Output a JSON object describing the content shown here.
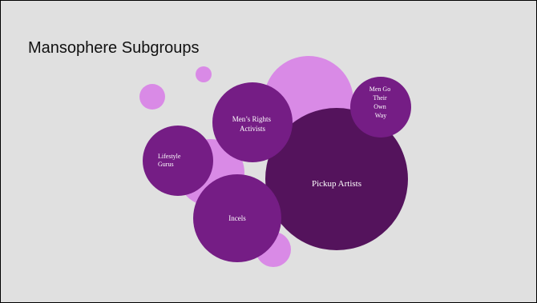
{
  "slide": {
    "title": "Mansophere Subgroups"
  },
  "colors": {
    "background": "#e0e0e0",
    "light_bubble": "#d98ae6",
    "medium_bubble": "#751d85",
    "dark_bubble": "#54135c",
    "label": "#ffffff"
  },
  "groups": [
    {
      "id": "mens-rights-activists",
      "lines": [
        "Men’s Rights",
        "Activists"
      ]
    },
    {
      "id": "men-go-their-own-way",
      "lines": [
        "Men Go",
        "Their",
        "Own",
        "Way"
      ]
    },
    {
      "id": "lifestyle-gurus",
      "lines": [
        "Lifestyle",
        "Gurus"
      ]
    },
    {
      "id": "pickup-artists",
      "lines": [
        "Pickup Artists"
      ]
    },
    {
      "id": "incels",
      "lines": [
        "Incels"
      ]
    }
  ]
}
